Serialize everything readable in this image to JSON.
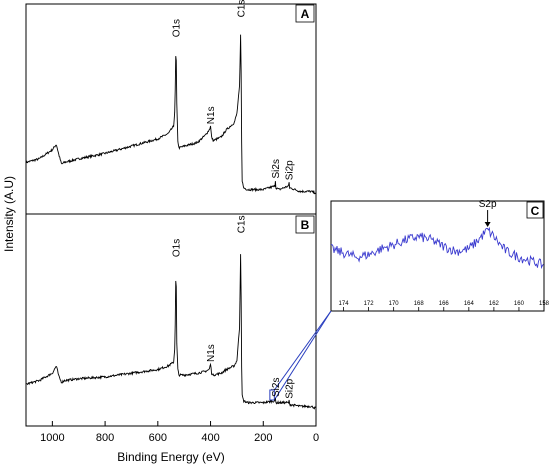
{
  "chart_data": [
    {
      "panel": "A",
      "type": "line",
      "xlabel": "Binding Energy (eV)",
      "ylabel": "Intensity (A.U)",
      "xlim": [
        1100,
        0
      ],
      "x_ticks": [
        1000,
        800,
        600,
        400,
        200,
        0
      ],
      "x_reversed": true,
      "color": "#000000",
      "grid": false,
      "peaks": [
        {
          "label": "O1s",
          "x": 531,
          "y": 0.86
        },
        {
          "label": "N1s",
          "x": 400,
          "y": 0.38
        },
        {
          "label": "C1s",
          "x": 285,
          "y": 0.97
        },
        {
          "label": "Si2s",
          "x": 154,
          "y": 0.08
        },
        {
          "label": "Si2p",
          "x": 102,
          "y": 0.07
        }
      ],
      "series": [
        {
          "x": [
            1100,
            1050,
            1000,
            985,
            975,
            965,
            955,
            900,
            800,
            700,
            600,
            560,
            540,
            535,
            531,
            528,
            524,
            520,
            500,
            450,
            420,
            405,
            400,
            396,
            390,
            360,
            340,
            310,
            300,
            290,
            287,
            285,
            283,
            280,
            275,
            260,
            200,
            155,
            154,
            152,
            140,
            104,
            102,
            100,
            60,
            20,
            0
          ],
          "y": [
            0.18,
            0.2,
            0.25,
            0.28,
            0.22,
            0.17,
            0.18,
            0.2,
            0.23,
            0.27,
            0.31,
            0.34,
            0.38,
            0.48,
            0.86,
            0.5,
            0.3,
            0.26,
            0.27,
            0.29,
            0.33,
            0.36,
            0.38,
            0.32,
            0.3,
            0.32,
            0.36,
            0.4,
            0.45,
            0.6,
            0.8,
            0.97,
            0.4,
            0.08,
            0.04,
            0.03,
            0.03,
            0.05,
            0.08,
            0.04,
            0.03,
            0.05,
            0.07,
            0.04,
            0.02,
            0.02,
            0.01
          ]
        }
      ]
    },
    {
      "panel": "B",
      "type": "line",
      "xlim": [
        1100,
        0
      ],
      "x_reversed": true,
      "color": "#000000",
      "grid": false,
      "peaks": [
        {
          "label": "O1s",
          "x": 531,
          "y": 0.82
        },
        {
          "label": "N1s",
          "x": 400,
          "y": 0.25
        },
        {
          "label": "C1s",
          "x": 285,
          "y": 0.95
        },
        {
          "label": "Si2s",
          "x": 154,
          "y": 0.06
        },
        {
          "label": "Si2p",
          "x": 102,
          "y": 0.05
        }
      ],
      "highlight_box_x": [
        175,
        158
      ],
      "series": [
        {
          "x": [
            1100,
            1050,
            1000,
            985,
            975,
            965,
            955,
            900,
            800,
            700,
            600,
            560,
            540,
            535,
            531,
            528,
            524,
            520,
            500,
            450,
            420,
            405,
            400,
            396,
            390,
            360,
            340,
            310,
            300,
            290,
            287,
            285,
            283,
            280,
            275,
            260,
            200,
            155,
            154,
            152,
            140,
            104,
            102,
            100,
            60,
            20,
            0
          ],
          "y": [
            0.14,
            0.16,
            0.2,
            0.24,
            0.18,
            0.15,
            0.16,
            0.17,
            0.18,
            0.2,
            0.22,
            0.24,
            0.26,
            0.35,
            0.82,
            0.36,
            0.22,
            0.19,
            0.19,
            0.2,
            0.21,
            0.22,
            0.25,
            0.2,
            0.19,
            0.2,
            0.22,
            0.24,
            0.27,
            0.45,
            0.75,
            0.95,
            0.3,
            0.08,
            0.05,
            0.04,
            0.04,
            0.05,
            0.06,
            0.04,
            0.04,
            0.04,
            0.05,
            0.03,
            0.02,
            0.02,
            0.01
          ]
        }
      ]
    },
    {
      "panel": "C",
      "type": "line",
      "xlim": [
        175,
        158
      ],
      "x_ticks": [
        174,
        172,
        170,
        168,
        166,
        164,
        162,
        160,
        158
      ],
      "x_reversed": true,
      "color": "#3b3bcf",
      "peaks": [
        {
          "label": "S2p",
          "x": 162.5,
          "y": 0.78
        }
      ],
      "series": [
        {
          "x": [
            175,
            174,
            173,
            172,
            171,
            170,
            169,
            168,
            167,
            166,
            165,
            164,
            163.5,
            163,
            162.5,
            162,
            161.5,
            161,
            160,
            159,
            158
          ],
          "y": [
            0.55,
            0.5,
            0.45,
            0.48,
            0.55,
            0.6,
            0.66,
            0.7,
            0.66,
            0.58,
            0.52,
            0.55,
            0.62,
            0.7,
            0.78,
            0.7,
            0.6,
            0.52,
            0.45,
            0.4,
            0.35
          ]
        }
      ]
    }
  ]
}
